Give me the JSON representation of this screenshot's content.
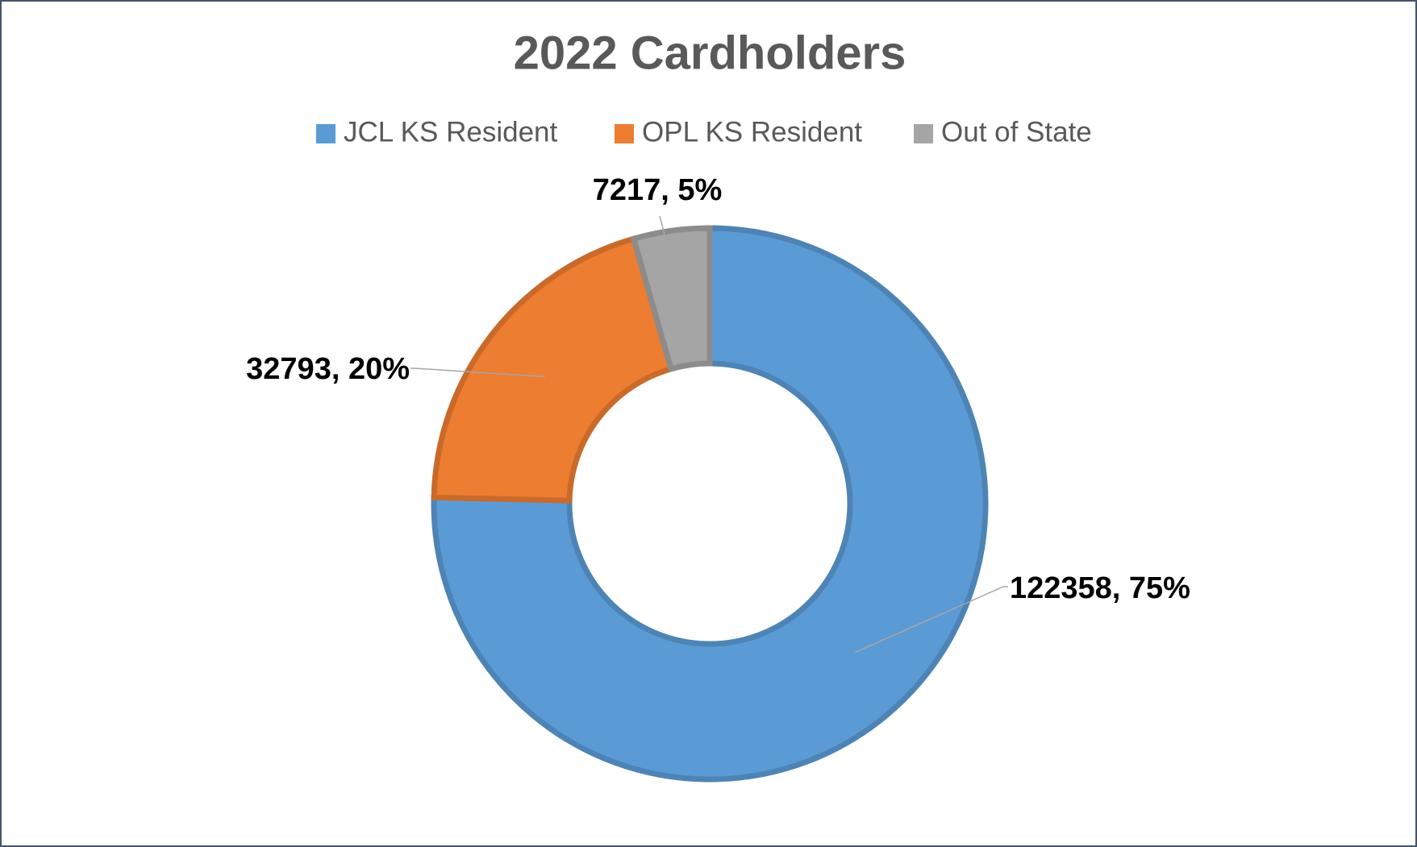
{
  "chart_data": {
    "type": "donut",
    "title": "2022 Cardholders",
    "categories": [
      "JCL KS Resident",
      "OPL KS Resident",
      "Out of State"
    ],
    "values": [
      122358,
      32793,
      7217
    ],
    "value_labels": [
      "122358, 75%",
      "32793, 20%",
      "7217, 5%"
    ],
    "colors": [
      "#5b9bd5",
      "#ed7d31",
      "#a5a5a5"
    ],
    "legend": "top"
  }
}
